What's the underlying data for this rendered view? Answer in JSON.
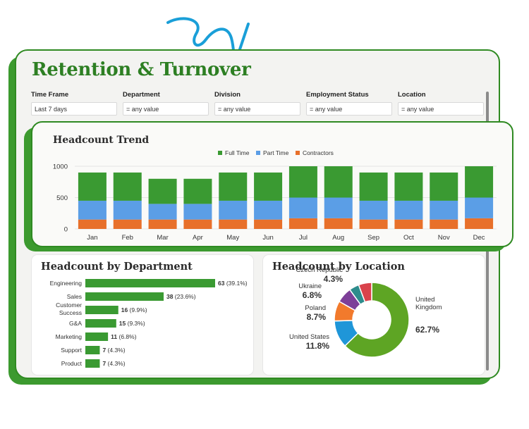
{
  "title": "Retention & Turnover",
  "filters": [
    {
      "label": "Time Frame",
      "value": "Last 7 days"
    },
    {
      "label": "Department",
      "value": "= any value"
    },
    {
      "label": "Division",
      "value": "= any value"
    },
    {
      "label": "Employment Status",
      "value": "= any value"
    },
    {
      "label": "Location",
      "value": "= any value"
    }
  ],
  "colors": {
    "brand_green": "#2d7f23",
    "full_time": "#3a9a32",
    "part_time": "#5b9ee6",
    "contractors": "#e8702a",
    "deco_blue": "#1a9fd8"
  },
  "chart_data": [
    {
      "type": "bar",
      "stacked": true,
      "title": "Headcount Trend",
      "categories": [
        "Jan",
        "Feb",
        "Mar",
        "Apr",
        "May",
        "Jun",
        "Jul",
        "Aug",
        "Sep",
        "Oct",
        "Nov",
        "Dec"
      ],
      "series": [
        {
          "name": "Contractors",
          "color": "#e8702a",
          "values": [
            150,
            150,
            150,
            150,
            150,
            150,
            170,
            170,
            150,
            150,
            150,
            170
          ]
        },
        {
          "name": "Part Time",
          "color": "#5b9ee6",
          "values": [
            300,
            300,
            250,
            250,
            300,
            300,
            330,
            330,
            300,
            300,
            300,
            330
          ]
        },
        {
          "name": "Full Time",
          "color": "#3a9a32",
          "values": [
            450,
            450,
            400,
            400,
            450,
            450,
            500,
            500,
            450,
            450,
            450,
            500
          ]
        }
      ],
      "legend_order": [
        "Full Time",
        "Part Time",
        "Contractors"
      ],
      "yticks": [
        0,
        500,
        1000
      ],
      "ylim": [
        0,
        1000
      ],
      "legend": "top-center",
      "grid": true
    },
    {
      "type": "bar",
      "orientation": "horizontal",
      "title": "Headcount by Department",
      "categories": [
        "Engineering",
        "Sales",
        "Customer Success",
        "G&A",
        "Marketing",
        "Support",
        "Product"
      ],
      "category_lines": [
        [
          "Engineering"
        ],
        [
          "Sales"
        ],
        [
          "Customer",
          "Success"
        ],
        [
          "G&A"
        ],
        [
          "Marketing"
        ],
        [
          "Support"
        ],
        [
          "Product"
        ]
      ],
      "values": [
        63,
        38,
        16,
        15,
        11,
        7,
        7
      ],
      "percent_labels": [
        "(39.1%)",
        "(23.6%)",
        "(9.9%)",
        "(9.3%)",
        "(6.8%)",
        "(4.3%)",
        "(4.3%)"
      ],
      "xlim": [
        0,
        63
      ]
    },
    {
      "type": "pie",
      "donut": true,
      "title": "Headcount by Location",
      "slices": [
        {
          "label": "United Kingdom",
          "value": 62.7,
          "pct_label": "62.7%",
          "color": "#5ea524"
        },
        {
          "label": "United States",
          "value": 11.8,
          "pct_label": "11.8%",
          "color": "#1f96d8"
        },
        {
          "label": "Poland",
          "value": 8.7,
          "pct_label": "8.7%",
          "color": "#f27a2c"
        },
        {
          "label": "Ukraine",
          "value": 6.8,
          "pct_label": "6.8%",
          "color": "#7d3f98"
        },
        {
          "label": "Czech Republic",
          "value": 4.3,
          "pct_label": "4.3%",
          "color": "#2e8c8c"
        },
        {
          "label": "",
          "value": 5.7,
          "pct_label": "",
          "color": "#d9424b"
        }
      ]
    }
  ]
}
